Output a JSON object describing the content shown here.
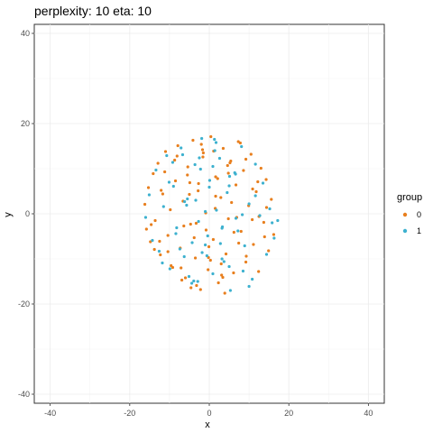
{
  "chart_data": {
    "type": "scatter",
    "title": "perplexity: 10 eta: 10",
    "xlabel": "x",
    "ylabel": "y",
    "xlim": [
      -44,
      44
    ],
    "ylim": [
      -42,
      42
    ],
    "xticks": [
      -40,
      -20,
      0,
      20,
      40
    ],
    "yticks": [
      -40,
      -20,
      0,
      20,
      40
    ],
    "grid": true,
    "legend": {
      "title": "group",
      "position": "right",
      "entries": [
        {
          "label": "0",
          "color": "#E87F1E"
        },
        {
          "label": "1",
          "color": "#3DB1CF"
        }
      ]
    },
    "series": [
      {
        "name": "0",
        "color": "#E87F1E",
        "x": [
          -16.2,
          -15.8,
          -15.3,
          -14.8,
          -14.1,
          -13.6,
          -12.9,
          -12.3,
          -11.7,
          -11.0,
          -10.4,
          -9.8,
          -9.2,
          -8.5,
          -7.9,
          -7.3,
          -6.6,
          -6.0,
          -5.4,
          -4.7,
          -4.1,
          -3.5,
          -2.8,
          -2.2,
          -1.6,
          -0.9,
          -0.3,
          0.4,
          1.0,
          1.6,
          2.3,
          2.9,
          3.5,
          4.2,
          4.8,
          5.4,
          6.1,
          6.7,
          7.3,
          8.0,
          8.6,
          9.2,
          9.9,
          10.5,
          11.1,
          11.8,
          12.4,
          13.0,
          13.7,
          14.3,
          14.9,
          15.6,
          16.2,
          -12.5,
          -11.2,
          -9.6,
          -8.1,
          -6.4,
          -4.9,
          -3.2,
          -1.7,
          -0.1,
          1.5,
          3.1,
          4.6,
          6.2,
          7.8,
          9.3,
          10.9,
          12.5,
          -10.4,
          -8.7,
          -6.9,
          -5.0,
          -3.3,
          -1.5,
          0.3,
          2.1,
          3.9,
          5.6,
          7.4,
          9.2,
          10.8,
          -7.1,
          -5.5,
          -3.8,
          -2.0,
          -0.2,
          1.6,
          3.4,
          5.2,
          6.9,
          -4.6,
          -2.7,
          -0.8,
          1.1,
          3.0,
          4.8,
          -13.8,
          -12.1,
          13.9,
          12.2,
          -14.6,
          14.4
        ],
        "y": [
          2.1,
          -3.4,
          5.8,
          -6.2,
          8.9,
          -1.5,
          11.2,
          -9.1,
          4.4,
          13.8,
          -4.8,
          0.9,
          -11.9,
          7.3,
          15.1,
          -7.6,
          2.8,
          -14.2,
          10.4,
          -2.3,
          16.3,
          -9.8,
          5.1,
          -16.8,
          12.6,
          0.2,
          -12.4,
          17.1,
          -5.7,
          8.2,
          -15.3,
          3.6,
          14.5,
          -8.9,
          -1.1,
          11.7,
          -13.1,
          6.4,
          16.0,
          -3.9,
          9.6,
          -10.7,
          1.8,
          13.2,
          -6.8,
          4.9,
          -12.8,
          10.1,
          -1.9,
          7.6,
          -8.2,
          3.2,
          -4.6,
          -6.1,
          9.3,
          -11.5,
          12.8,
          -2.7,
          6.9,
          -15.9,
          14.2,
          -7.3,
          1.2,
          -13.6,
          10.7,
          -4.1,
          15.7,
          -9.4,
          5.5,
          -0.6,
          -8.4,
          11.9,
          -14.7,
          4.3,
          -2.1,
          13.5,
          -10.3,
          7.8,
          -17.6,
          2.5,
          -6.5,
          12.1,
          -1.3,
          -12.0,
          8.6,
          -5.3,
          15.4,
          -9.7,
          3.9,
          -14.1,
          11.3,
          -0.8,
          -16.4,
          6.7,
          -3.6,
          13.9,
          -11.1,
          9.0,
          -7.9,
          5.2,
          -5.1,
          7.1,
          -2.4,
          1.4
        ]
      },
      {
        "name": "1",
        "color": "#3DB1CF",
        "x": [
          -16.0,
          -15.1,
          -14.3,
          -13.4,
          -12.6,
          -11.5,
          -10.7,
          -9.9,
          -9.0,
          -8.2,
          -7.1,
          -6.3,
          -5.5,
          -4.4,
          -3.6,
          -2.7,
          -1.9,
          -1.0,
          0.1,
          0.9,
          1.8,
          2.6,
          3.7,
          4.5,
          5.3,
          6.4,
          7.2,
          8.1,
          8.9,
          10.0,
          10.8,
          11.6,
          12.7,
          13.5,
          14.4,
          15.2,
          16.3,
          -11.8,
          -10.1,
          -8.4,
          -6.7,
          -5.1,
          -3.4,
          -1.8,
          0.0,
          1.7,
          3.3,
          5.0,
          6.6,
          8.3,
          10.0,
          11.6,
          -9.2,
          -7.4,
          -5.7,
          -3.9,
          -2.2,
          -0.4,
          1.4,
          3.2,
          5.0,
          6.7,
          8.5,
          -6.2,
          -4.3,
          -2.5,
          -0.6,
          1.3,
          3.2,
          5.1,
          -2.9,
          -1.0,
          0.9,
          2.8,
          15.8,
          17.2
        ],
        "y": [
          -0.8,
          4.2,
          -5.9,
          9.7,
          -8.3,
          1.6,
          12.9,
          -12.2,
          6.1,
          -3.1,
          14.6,
          -9.5,
          3.3,
          -15.4,
          10.9,
          -1.7,
          16.7,
          -6.9,
          7.4,
          -13.3,
          0.8,
          12.3,
          -10.6,
          4.7,
          -17.0,
          9.1,
          -3.8,
          14.9,
          -7.1,
          2.2,
          -14.5,
          11.0,
          -0.4,
          6.8,
          -9.0,
          1.1,
          -5.4,
          -10.9,
          7.0,
          -4.4,
          13.1,
          -13.9,
          3.0,
          -8.6,
          5.9,
          15.8,
          -2.9,
          -11.7,
          8.8,
          -0.2,
          -16.1,
          4.0,
          11.4,
          -7.8,
          1.9,
          -14.9,
          9.9,
          -4.9,
          14.0,
          -10.0,
          6.2,
          -1.0,
          -12.7,
          2.7,
          -6.4,
          12.4,
          -9.3,
          16.5,
          -3.2,
          8.3,
          -15.0,
          0.5,
          10.5,
          -6.6,
          -2.0,
          -1.5
        ]
      }
    ]
  }
}
